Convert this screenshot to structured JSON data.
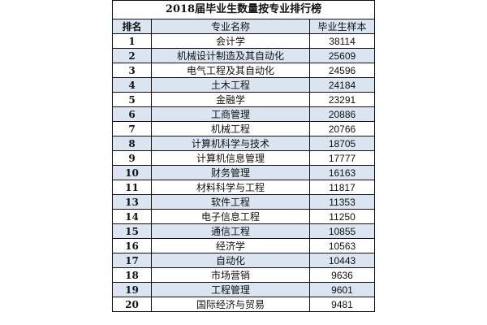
{
  "title": "2018届毕业生数量按专业排行榜",
  "columns": {
    "rank": "排名",
    "major": "专业名称",
    "count": "毕业生样本"
  },
  "rows": [
    {
      "rank": "1",
      "major": "会计学",
      "count": "38114"
    },
    {
      "rank": "2",
      "major": "机械设计制造及其自动化",
      "count": "25609"
    },
    {
      "rank": "3",
      "major": "电气工程及其自动化",
      "count": "24596"
    },
    {
      "rank": "4",
      "major": "土木工程",
      "count": "24184"
    },
    {
      "rank": "5",
      "major": "金融学",
      "count": "23291"
    },
    {
      "rank": "6",
      "major": "工商管理",
      "count": "20886"
    },
    {
      "rank": "7",
      "major": "机械工程",
      "count": "20766"
    },
    {
      "rank": "8",
      "major": "计算机科学与技术",
      "count": "18705"
    },
    {
      "rank": "9",
      "major": "计算机信息管理",
      "count": "17777"
    },
    {
      "rank": "10",
      "major": "财务管理",
      "count": "16163"
    },
    {
      "rank": "11",
      "major": "材料科学与工程",
      "count": "11817"
    },
    {
      "rank": "13",
      "major": "软件工程",
      "count": "11353"
    },
    {
      "rank": "14",
      "major": "电子信息工程",
      "count": "11250"
    },
    {
      "rank": "15",
      "major": "通信工程",
      "count": "10855"
    },
    {
      "rank": "16",
      "major": "经济学",
      "count": "10563"
    },
    {
      "rank": "17",
      "major": "自动化",
      "count": "10443"
    },
    {
      "rank": "18",
      "major": "市场营销",
      "count": "9636"
    },
    {
      "rank": "19",
      "major": "工程管理",
      "count": "9601"
    },
    {
      "rank": "20",
      "major": "国际经济与贸易",
      "count": "9481"
    }
  ]
}
